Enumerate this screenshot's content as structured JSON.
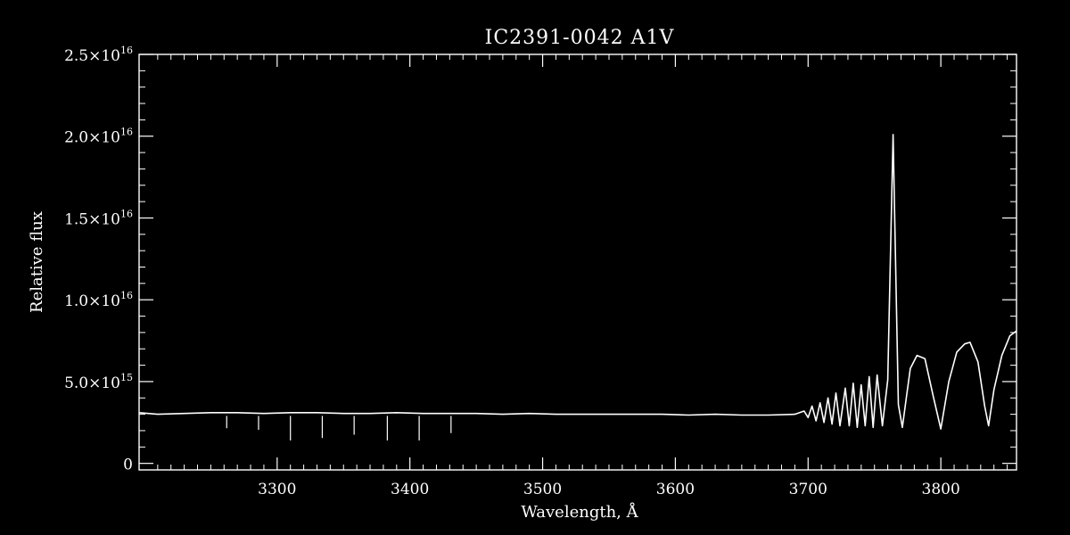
{
  "chart_data": {
    "type": "line",
    "title": "IC2391-0042  A1V",
    "xlabel": "Wavelength, Å",
    "ylabel": "Relative flux",
    "xlim": [
      3196,
      3857
    ],
    "ylim": [
      -400000000000000.0,
      2.5e+16
    ],
    "grid": false,
    "x_ticks": [
      {
        "value": 3300,
        "label": "3300"
      },
      {
        "value": 3400,
        "label": "3400"
      },
      {
        "value": 3500,
        "label": "3500"
      },
      {
        "value": 3600,
        "label": "3600"
      },
      {
        "value": 3700,
        "label": "3700"
      },
      {
        "value": 3800,
        "label": "3800"
      }
    ],
    "y_ticks": [
      {
        "value": 0,
        "mantissa": "0",
        "exponent": ""
      },
      {
        "value": 5000000000000000.0,
        "mantissa": "5.0×10",
        "exponent": "15"
      },
      {
        "value": 1e+16,
        "mantissa": "1.0×10",
        "exponent": "16"
      },
      {
        "value": 1.5e+16,
        "mantissa": "1.5×10",
        "exponent": "16"
      },
      {
        "value": 2e+16,
        "mantissa": "2.0×10",
        "exponent": "16"
      },
      {
        "value": 2.5e+16,
        "mantissa": "2.5×10",
        "exponent": "16"
      }
    ],
    "series": [
      {
        "x": [
          3196,
          3210,
          3230,
          3250,
          3270,
          3290,
          3310,
          3330,
          3350,
          3370,
          3390,
          3410,
          3430,
          3450,
          3470,
          3490,
          3510,
          3530,
          3550,
          3570,
          3590,
          3610,
          3630,
          3650,
          3670,
          3690,
          3697,
          3700,
          3703,
          3706,
          3709,
          3712,
          3715,
          3718,
          3721,
          3724,
          3728,
          3731,
          3734,
          3737,
          3740,
          3743,
          3746,
          3749,
          3752,
          3756,
          3760,
          3764,
          3768,
          3771,
          3774,
          3777,
          3782,
          3788,
          3794,
          3800,
          3806,
          3812,
          3818,
          3822,
          3828,
          3833,
          3836,
          3840,
          3846,
          3852,
          3857
        ],
        "y": [
          3100000000000000.0,
          3000000000000000.0,
          3050000000000000.0,
          3100000000000000.0,
          3100000000000000.0,
          3050000000000000.0,
          3100000000000000.0,
          3100000000000000.0,
          3050000000000000.0,
          3050000000000000.0,
          3100000000000000.0,
          3050000000000000.0,
          3050000000000000.0,
          3050000000000000.0,
          3000000000000000.0,
          3050000000000000.0,
          3000000000000000.0,
          3000000000000000.0,
          3000000000000000.0,
          3000000000000000.0,
          3000000000000000.0,
          2950000000000000.0,
          3000000000000000.0,
          2950000000000000.0,
          2950000000000000.0,
          3000000000000000.0,
          3200000000000000.0,
          2800000000000000.0,
          3500000000000000.0,
          2600000000000000.0,
          3700000000000000.0,
          2500000000000000.0,
          4000000000000000.0,
          2400000000000000.0,
          4300000000000000.0,
          2300000000000000.0,
          4600000000000000.0,
          2300000000000000.0,
          4900000000000000.0,
          2200000000000000.0,
          4800000000000000.0,
          2300000000000000.0,
          5300000000000000.0,
          2200000000000000.0,
          5400000000000000.0,
          2300000000000000.0,
          5100000000000000.0,
          2.01e+16,
          3600000000000000.0,
          2200000000000000.0,
          4000000000000000.0,
          5800000000000000.0,
          6600000000000000.0,
          6400000000000000.0,
          4200000000000000.0,
          2100000000000000.0,
          5000000000000000.0,
          6800000000000000.0,
          7300000000000000.0,
          7400000000000000.0,
          6200000000000000.0,
          3500000000000000.0,
          2300000000000000.0,
          4500000000000000.0,
          6600000000000000.0,
          7800000000000000.0,
          8100000000000000.0
        ]
      }
    ],
    "vertical_markers": [
      {
        "x": 3262,
        "y_top": 2900000000000000.0,
        "y_bottom": 2150000000000000.0
      },
      {
        "x": 3286,
        "y_top": 2900000000000000.0,
        "y_bottom": 2050000000000000.0
      },
      {
        "x": 3310,
        "y_top": 2900000000000000.0,
        "y_bottom": 1400000000000000.0
      },
      {
        "x": 3334,
        "y_top": 2900000000000000.0,
        "y_bottom": 1550000000000000.0
      },
      {
        "x": 3358,
        "y_top": 2900000000000000.0,
        "y_bottom": 1750000000000000.0
      },
      {
        "x": 3383,
        "y_top": 2900000000000000.0,
        "y_bottom": 1400000000000000.0
      },
      {
        "x": 3407,
        "y_top": 2900000000000000.0,
        "y_bottom": 1400000000000000.0
      },
      {
        "x": 3431,
        "y_top": 2900000000000000.0,
        "y_bottom": 1850000000000000.0
      }
    ]
  }
}
